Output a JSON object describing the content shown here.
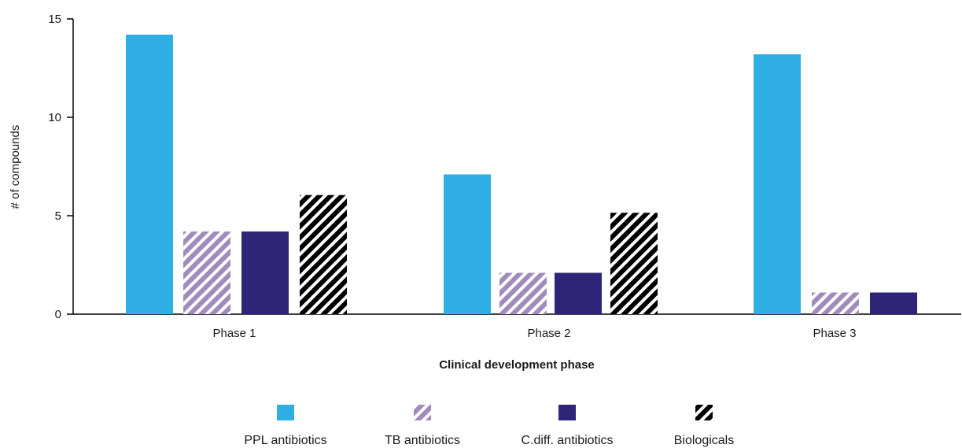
{
  "chart_data": {
    "type": "bar",
    "title": "",
    "xlabel": "Clinical development phase",
    "ylabel": "# of compounds",
    "ylim": [
      0,
      15
    ],
    "yticks": [
      0,
      5,
      10,
      15
    ],
    "grid": false,
    "legend_position": "bottom",
    "categories": [
      "Phase 1",
      "Phase 2",
      "Phase 3"
    ],
    "series": [
      {
        "name": "PPL antibiotics",
        "values": [
          14.2,
          7.1,
          13.2
        ],
        "color": "#2eaee3",
        "pattern": "solid"
      },
      {
        "name": "TB antibiotics",
        "values": [
          4.2,
          2.1,
          1.1
        ],
        "color": "#a18bbd",
        "pattern": "hatched"
      },
      {
        "name": "C.diff. antibiotics",
        "values": [
          4.2,
          2.1,
          1.1
        ],
        "color": "#2e2478",
        "pattern": "solid"
      },
      {
        "name": "Biologicals",
        "values": [
          6.05,
          5.15,
          0
        ],
        "color": "#000000",
        "pattern": "hatched"
      }
    ]
  }
}
